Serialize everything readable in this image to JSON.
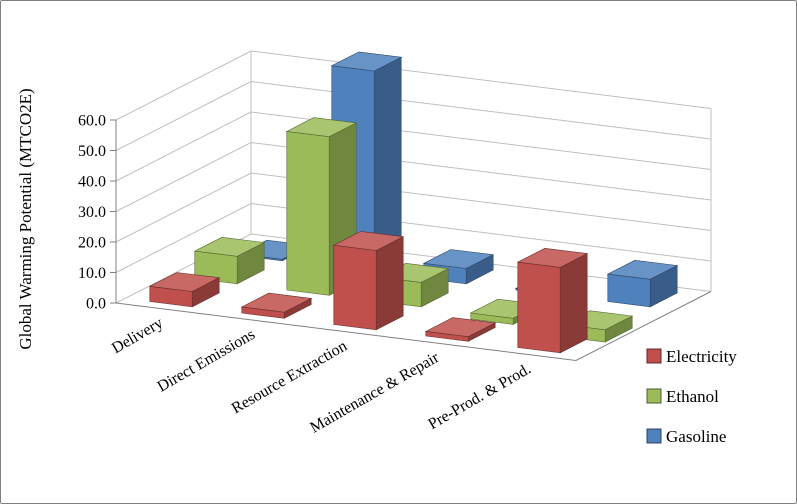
{
  "chart_data": {
    "type": "bar",
    "variant": "3d-column",
    "title": "",
    "ylabel": "Global Warming Potential (MTCO2E)",
    "xlabel": "",
    "ylim": [
      0,
      60
    ],
    "ytick_step": 10,
    "ytick_labels": [
      "0.0",
      "10.0",
      "20.0",
      "30.0",
      "40.0",
      "50.0",
      "60.0"
    ],
    "grid": true,
    "legend_position": "right-bottom",
    "categories": [
      "Delivery",
      "Direct Emissions",
      "Resource Extraction",
      "Maintenance & Repair",
      "Pre-Prod. & Prod."
    ],
    "series": [
      {
        "name": "Electricity",
        "color": "#C0504D",
        "values": [
          5,
          2,
          26,
          1.5,
          28
        ]
      },
      {
        "name": "Ethanol",
        "color": "#9BBB59",
        "values": [
          9,
          52,
          8,
          -2,
          -4
        ]
      },
      {
        "name": "Gasoline",
        "color": "#4F81BD",
        "values": [
          0.5,
          66,
          5,
          0.5,
          9
        ]
      }
    ]
  }
}
